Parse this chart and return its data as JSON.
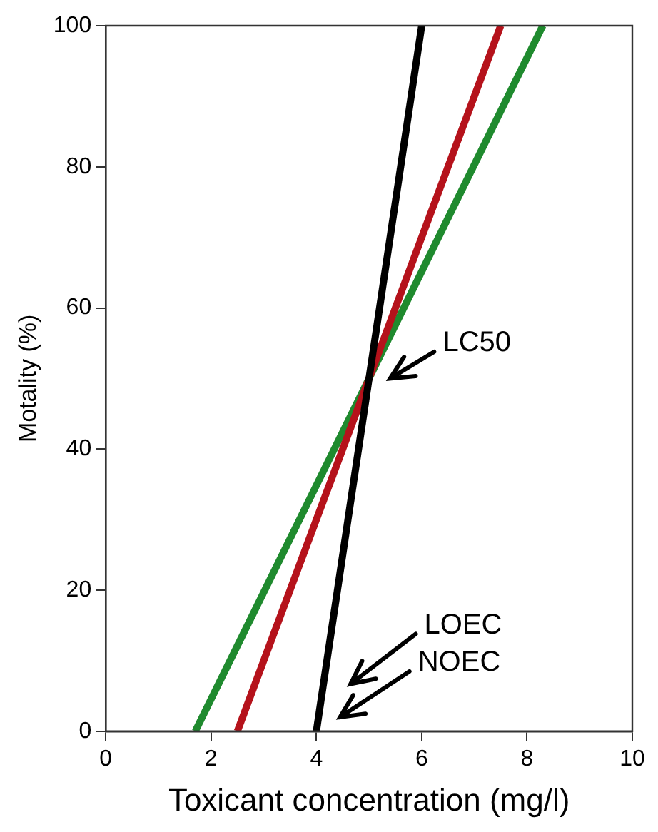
{
  "chart_data": {
    "type": "line",
    "xlabel": "Toxicant concentration (mg/l)",
    "ylabel": "Motality (%)",
    "xlim": [
      0,
      10
    ],
    "xticks": [
      0,
      2,
      4,
      6,
      8,
      10
    ],
    "ylim": [
      0,
      100
    ],
    "yticks": [
      0,
      20,
      40,
      60,
      80,
      100
    ],
    "marker": "none",
    "series": [
      {
        "color": "#000000",
        "x": [
          4,
          6
        ],
        "values": [
          0,
          100
        ]
      },
      {
        "color": "#b5121b",
        "x": [
          2.5,
          7.5
        ],
        "values": [
          0,
          100
        ]
      },
      {
        "color": "#1f8a2e",
        "x": [
          1.7,
          8.3
        ],
        "values": [
          0,
          100
        ]
      }
    ],
    "annotations": [
      "LC50",
      "LOEC",
      "NOEC"
    ]
  }
}
